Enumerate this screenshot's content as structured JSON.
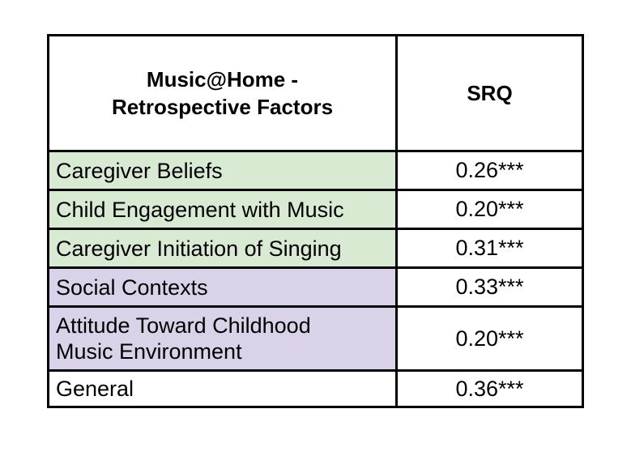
{
  "header": {
    "factor_title_line1": "Music@Home -",
    "factor_title_line2": "Retrospective Factors",
    "srq_title": "SRQ"
  },
  "rows": [
    {
      "label_line1": "Caregiver Beliefs",
      "label_line2": "",
      "value": "0.26***",
      "group_color": "#d9ead3"
    },
    {
      "label_line1": "Child Engagement with Music",
      "label_line2": "",
      "value": "0.20***",
      "group_color": "#d9ead3"
    },
    {
      "label_line1": "Caregiver Initiation of Singing",
      "label_line2": "",
      "value": "0.31***",
      "group_color": "#d9ead3"
    },
    {
      "label_line1": "Social Contexts",
      "label_line2": "",
      "value": "0.33***",
      "group_color": "#d9d2e9"
    },
    {
      "label_line1": "Attitude Toward Childhood",
      "label_line2": "Music Environment",
      "value": "0.20***",
      "group_color": "#d9d2e9"
    },
    {
      "label_line1": "General",
      "label_line2": "",
      "value": "0.36***",
      "group_color": "#ffffff"
    }
  ]
}
